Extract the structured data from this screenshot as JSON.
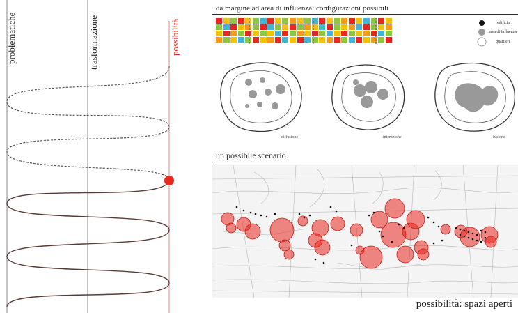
{
  "left_panel": {
    "axis_labels": [
      "problematiche",
      "trasformazione",
      "possibilità"
    ],
    "accent_color": "#e8281f"
  },
  "right_panel": {
    "top_title": "da margine ad area di influenza: configurazioni possibili",
    "legend": [
      "edificio",
      "area di influenza",
      "quartiere"
    ],
    "cases": [
      "diffusione",
      "interazione",
      "fusione"
    ],
    "scenario_title": "un possibile scenario",
    "caption": "possibilità: spazi aperti",
    "grid_colors": [
      "#e8281f",
      "#f2c10a",
      "#8ec63f",
      "#45b3d6",
      "#f29c1a"
    ]
  }
}
